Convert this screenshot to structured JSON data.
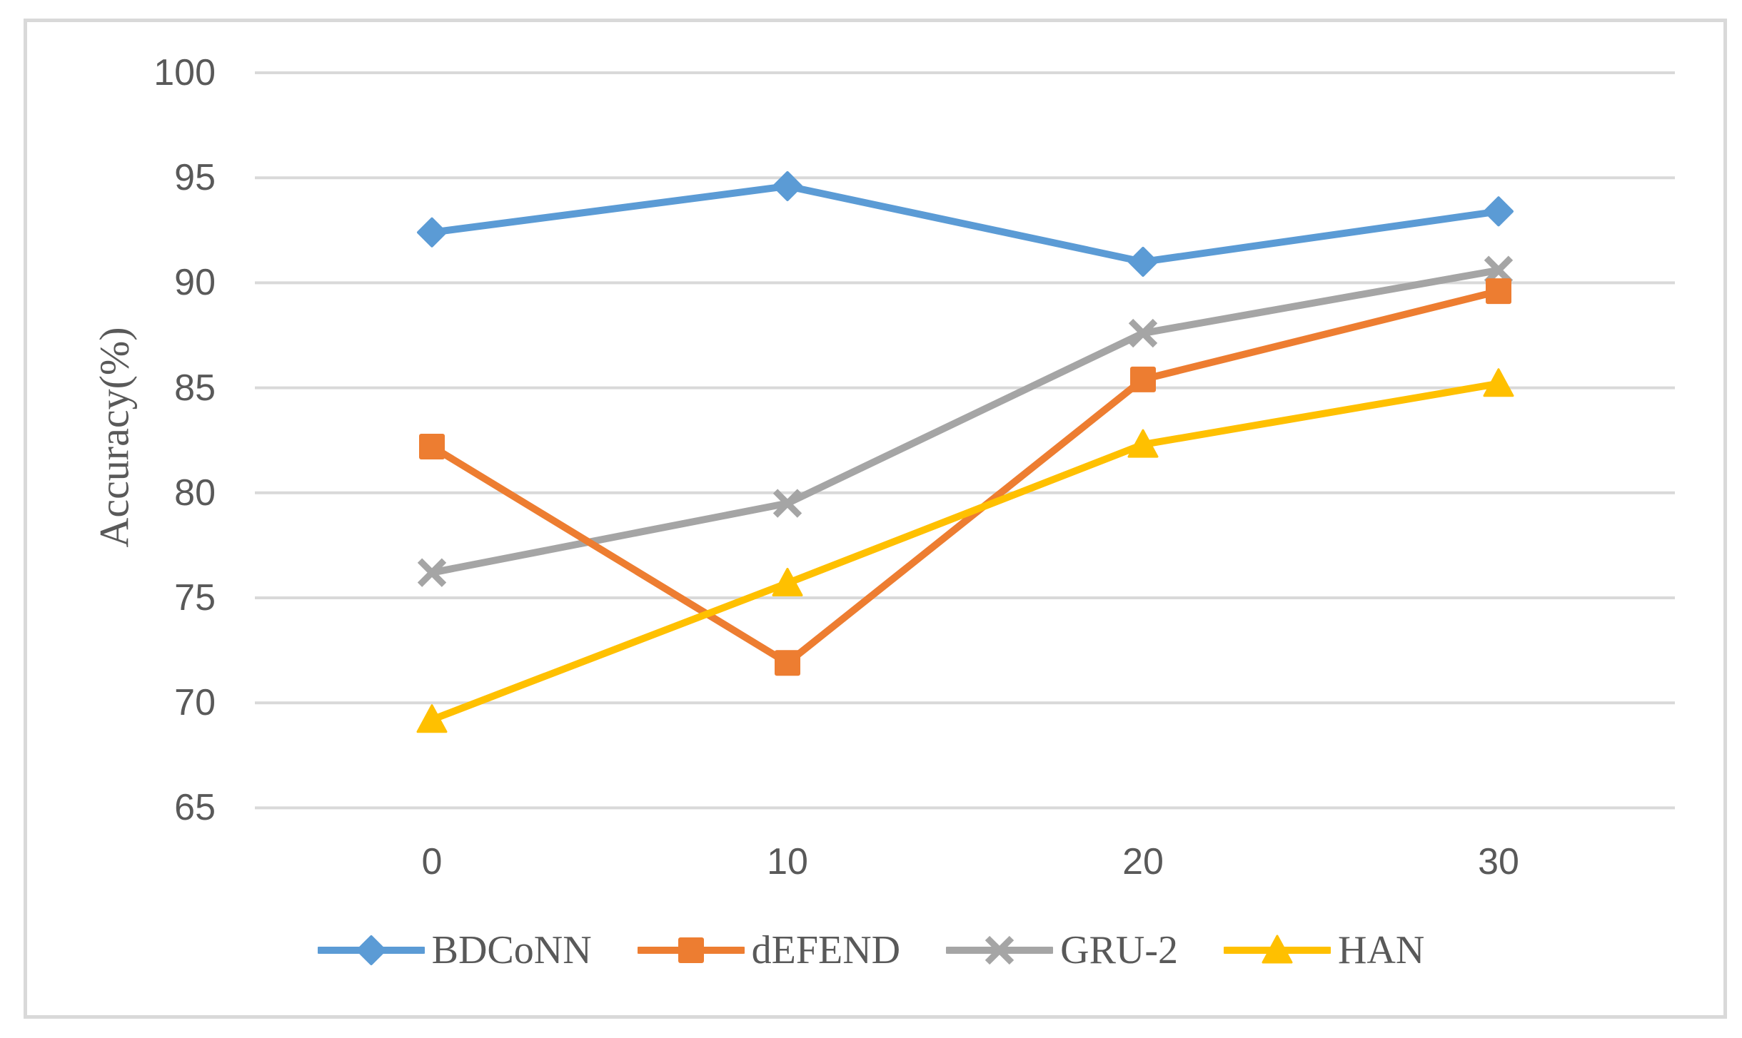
{
  "chart_data": {
    "type": "line",
    "title": "",
    "xlabel": "",
    "ylabel": "Accuracy(%)",
    "x_categories": [
      "0",
      "10",
      "20",
      "30"
    ],
    "ylim": [
      65,
      100
    ],
    "ytick_step": 5,
    "ytick_labels": [
      "65",
      "70",
      "75",
      "80",
      "85",
      "90",
      "95",
      "100"
    ],
    "grid": "horizontal-only",
    "legend_position": "bottom",
    "series": [
      {
        "name": "BDCoNN",
        "marker": "diamond",
        "color": "#5B9BD5",
        "values": [
          92.4,
          94.6,
          91.0,
          93.4
        ]
      },
      {
        "name": "dEFEND",
        "marker": "square",
        "color": "#ED7D31",
        "values": [
          82.2,
          71.9,
          85.4,
          89.6
        ]
      },
      {
        "name": "GRU-2",
        "marker": "x",
        "color": "#A5A5A5",
        "values": [
          76.2,
          79.5,
          87.6,
          90.6
        ]
      },
      {
        "name": "HAN",
        "marker": "triangle",
        "color": "#FFC000",
        "values": [
          69.2,
          75.7,
          82.3,
          85.2
        ]
      }
    ]
  },
  "colors": {
    "gridline": "#D9D9D9",
    "frame_border": "#D9D9D9",
    "axis_text": "#595959",
    "legend_text": "#595959",
    "background": "#FFFFFF"
  }
}
